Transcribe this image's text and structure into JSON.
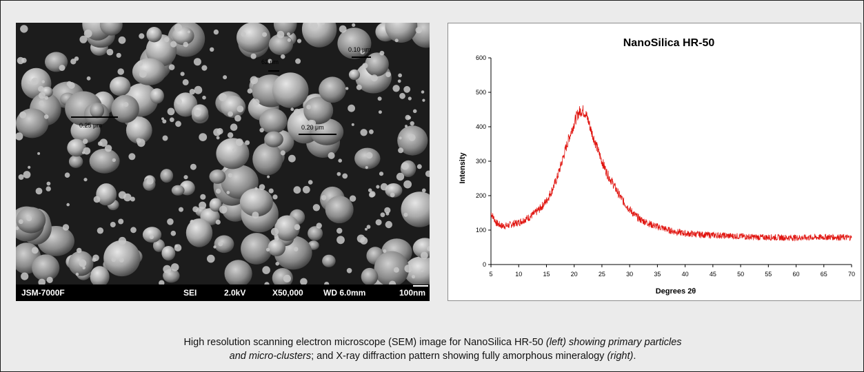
{
  "sem": {
    "instrument": "JSM-7000F",
    "mode": "SEI",
    "voltage": "2.0kV",
    "magnification": "X50,000",
    "working_distance": "WD 6.0mm",
    "scale": "100nm",
    "annotations": [
      "62 nm",
      "0.10 μm",
      "0.25 μm",
      "0.20 μm"
    ]
  },
  "caption": {
    "p1": "High resolution scanning electron microscope (SEM) image for NanoSilica HR-50 ",
    "p2": "(left) showing primary particles",
    "p3": "and micro-clusters",
    "p4": "; and X-ray diffraction pattern showing fully amorphous mineralogy ",
    "p5": "(right)",
    "p6": "."
  },
  "chart_data": {
    "type": "line",
    "title": "NanoSilica HR-50",
    "xlabel": "Degrees 2θ",
    "ylabel": "Intensity",
    "xlim": [
      5,
      70
    ],
    "ylim": [
      0,
      600
    ],
    "xticks": [
      5,
      10,
      15,
      20,
      25,
      30,
      35,
      40,
      45,
      50,
      55,
      60,
      65,
      70
    ],
    "yticks": [
      0,
      100,
      200,
      300,
      400,
      500,
      600
    ],
    "grid": false,
    "legend": "none",
    "line_color": "#e0140f",
    "series": [
      {
        "x": [
          5,
          6,
          7,
          8,
          9,
          10,
          11,
          12,
          13,
          14,
          15,
          16,
          17,
          18,
          19,
          20,
          20.5,
          21,
          21.5,
          22,
          22.5,
          23,
          24,
          25,
          26,
          27,
          28,
          29,
          30,
          31,
          32,
          33,
          34,
          35,
          36,
          37,
          38,
          39,
          40,
          42,
          44,
          46,
          48,
          50,
          52,
          54,
          56,
          58,
          60,
          62,
          64,
          66,
          68,
          70
        ],
        "y": [
          150,
          120,
          112,
          113,
          118,
          122,
          130,
          138,
          150,
          165,
          185,
          215,
          255,
          310,
          365,
          410,
          432,
          445,
          448,
          440,
          420,
          392,
          345,
          300,
          262,
          235,
          205,
          180,
          160,
          143,
          130,
          123,
          115,
          110,
          106,
          100,
          96,
          93,
          90,
          88,
          86,
          85,
          83,
          82,
          80,
          79,
          79,
          78,
          78,
          78,
          79,
          80,
          79,
          78
        ]
      }
    ]
  }
}
